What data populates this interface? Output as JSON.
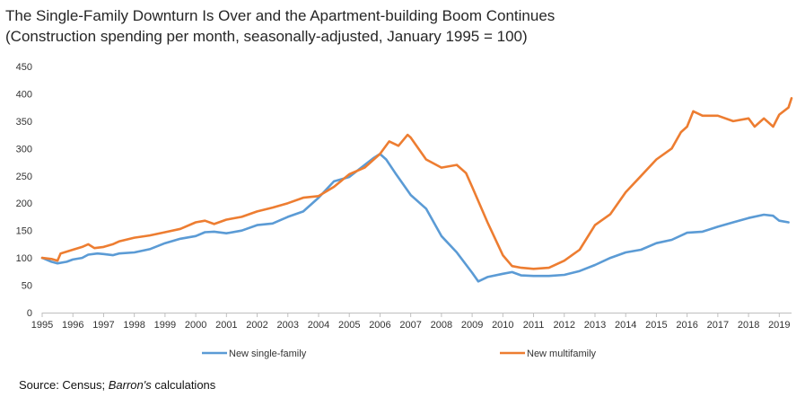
{
  "chart_data": {
    "type": "line",
    "title": "The Single-Family Downturn Is Over and the Apartment-building Boom Continues",
    "subtitle": "(Construction spending per month, seasonally-adjusted, January 1995 = 100)",
    "xlabel": "",
    "ylabel": "",
    "xlim": [
      1995,
      2019.4
    ],
    "ylim": [
      0,
      450
    ],
    "y_ticks": [
      "0",
      "50",
      "100",
      "150",
      "200",
      "250",
      "300",
      "350",
      "400",
      "450"
    ],
    "x_ticks": [
      "1995",
      "1996",
      "1997",
      "1998",
      "1999",
      "2000",
      "2001",
      "2002",
      "2003",
      "2004",
      "2005",
      "2006",
      "2007",
      "2008",
      "2009",
      "2010",
      "2011",
      "2012",
      "2013",
      "2014",
      "2015",
      "2016",
      "2017",
      "2018",
      "2019"
    ],
    "grid": false,
    "legend_position": "bottom",
    "series": [
      {
        "name": "New single-family",
        "color": "#5b9bd5",
        "x": [
          1995.0,
          1995.3,
          1995.5,
          1995.8,
          1996.0,
          1996.3,
          1996.5,
          1996.8,
          1997.0,
          1997.3,
          1997.5,
          1998.0,
          1998.5,
          1999.0,
          1999.5,
          2000.0,
          2000.3,
          2000.6,
          2001.0,
          2001.5,
          2002.0,
          2002.5,
          2003.0,
          2003.5,
          2004.0,
          2004.5,
          2005.0,
          2005.5,
          2005.8,
          2006.0,
          2006.2,
          2006.5,
          2007.0,
          2007.5,
          2008.0,
          2008.5,
          2009.0,
          2009.2,
          2009.5,
          2010.0,
          2010.3,
          2010.6,
          2011.0,
          2011.5,
          2012.0,
          2012.5,
          2013.0,
          2013.5,
          2014.0,
          2014.5,
          2015.0,
          2015.5,
          2016.0,
          2016.5,
          2017.0,
          2017.5,
          2018.0,
          2018.5,
          2018.8,
          2019.0,
          2019.3
        ],
        "values": [
          100,
          93,
          90,
          93,
          97,
          100,
          106,
          108,
          107,
          105,
          108,
          110,
          116,
          127,
          135,
          140,
          147,
          148,
          145,
          150,
          160,
          163,
          175,
          185,
          210,
          240,
          248,
          270,
          283,
          290,
          280,
          255,
          215,
          190,
          140,
          110,
          73,
          57,
          65,
          71,
          74,
          68,
          67,
          67,
          69,
          76,
          87,
          100,
          110,
          115,
          127,
          133,
          146,
          148,
          157,
          165,
          173,
          179,
          177,
          168,
          165
        ]
      },
      {
        "name": "New multifamily",
        "color": "#ed7d31",
        "x": [
          1995.0,
          1995.3,
          1995.5,
          1995.6,
          1996.0,
          1996.3,
          1996.5,
          1996.7,
          1997.0,
          1997.3,
          1997.5,
          1998.0,
          1998.5,
          1999.0,
          1999.5,
          2000.0,
          2000.3,
          2000.6,
          2001.0,
          2001.5,
          2002.0,
          2002.5,
          2003.0,
          2003.5,
          2004.0,
          2004.5,
          2005.0,
          2005.5,
          2006.0,
          2006.3,
          2006.6,
          2006.9,
          2007.0,
          2007.5,
          2008.0,
          2008.5,
          2008.8,
          2009.0,
          2009.5,
          2010.0,
          2010.3,
          2010.6,
          2011.0,
          2011.5,
          2012.0,
          2012.5,
          2013.0,
          2013.5,
          2014.0,
          2014.5,
          2015.0,
          2015.5,
          2015.8,
          2016.0,
          2016.2,
          2016.5,
          2017.0,
          2017.5,
          2018.0,
          2018.2,
          2018.5,
          2018.8,
          2019.0,
          2019.3,
          2019.4
        ],
        "values": [
          100,
          98,
          95,
          108,
          115,
          120,
          125,
          118,
          120,
          125,
          130,
          137,
          141,
          147,
          153,
          165,
          168,
          162,
          170,
          175,
          185,
          192,
          200,
          210,
          213,
          230,
          253,
          265,
          290,
          313,
          305,
          325,
          320,
          280,
          265,
          270,
          255,
          230,
          165,
          105,
          85,
          82,
          80,
          82,
          95,
          115,
          160,
          180,
          220,
          250,
          280,
          300,
          330,
          340,
          368,
          360,
          360,
          350,
          355,
          340,
          355,
          340,
          362,
          375,
          392
        ]
      }
    ]
  }
}
